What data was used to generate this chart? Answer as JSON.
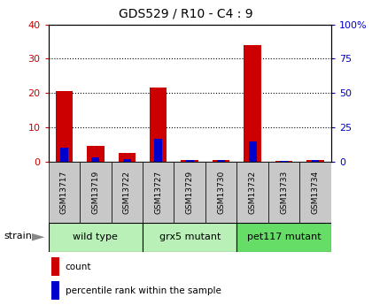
{
  "title": "GDS529 / R10 - C4 : 9",
  "samples": [
    "GSM13717",
    "GSM13719",
    "GSM13722",
    "GSM13727",
    "GSM13729",
    "GSM13730",
    "GSM13732",
    "GSM13733",
    "GSM13734"
  ],
  "count_values": [
    20.5,
    4.5,
    2.5,
    21.5,
    0.5,
    0.5,
    34.0,
    0.2,
    0.5
  ],
  "percentile_values": [
    10.5,
    3.0,
    2.0,
    16.5,
    1.0,
    1.0,
    14.5,
    0.5,
    1.5
  ],
  "count_color": "#cc0000",
  "percentile_color": "#0000cc",
  "ylim_left": [
    0,
    40
  ],
  "ylim_right": [
    0,
    100
  ],
  "yticks_left": [
    0,
    10,
    20,
    30,
    40
  ],
  "yticks_right": [
    0,
    25,
    50,
    75,
    100
  ],
  "yticklabels_right": [
    "0",
    "25",
    "50",
    "75",
    "100%"
  ],
  "group_spans": [
    {
      "start": 0,
      "end": 3,
      "label": "wild type",
      "color": "#b8f0b8"
    },
    {
      "start": 3,
      "end": 6,
      "label": "grx5 mutant",
      "color": "#b8f0b8"
    },
    {
      "start": 6,
      "end": 9,
      "label": "pet117 mutant",
      "color": "#66dd66"
    }
  ],
  "strain_label": "strain",
  "legend_count": "count",
  "legend_percentile": "percentile rank within the sample",
  "tick_bg_color": "#c8c8c8",
  "bar_width": 0.55
}
